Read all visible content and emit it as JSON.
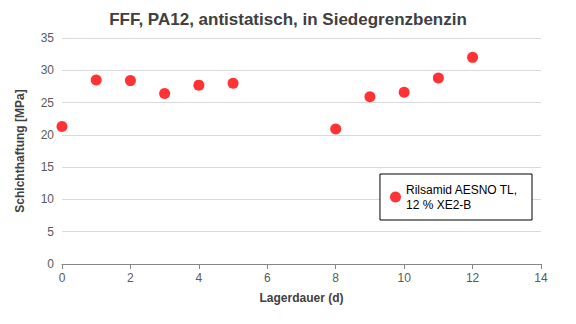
{
  "chart_data": {
    "type": "scatter",
    "title": "FFF, PA12, antistatisch, in Siedegrenzbenzin",
    "x_label": "Lagerdauer (d)",
    "y_label": "Schichthaftung [MPa]",
    "series": [
      {
        "name": "Rilsamid AESNO TL,\n12 % XE2-B",
        "color": "#ff0000",
        "marker": "circle",
        "x": [
          0,
          1,
          2,
          3,
          4,
          5,
          8,
          9,
          10,
          11,
          12
        ],
        "values": [
          21.3,
          28.5,
          28.4,
          26.4,
          27.7,
          28.0,
          20.9,
          25.9,
          26.6,
          28.8,
          32.0
        ]
      }
    ],
    "xlim": [
      0,
      14
    ],
    "xticks": [
      0,
      2,
      4,
      6,
      8,
      10,
      12,
      14
    ],
    "ylim": [
      0,
      35
    ],
    "yticks": [
      0,
      5,
      10,
      15,
      20,
      25,
      30,
      35
    ],
    "grid": true,
    "legend": "lower right"
  }
}
